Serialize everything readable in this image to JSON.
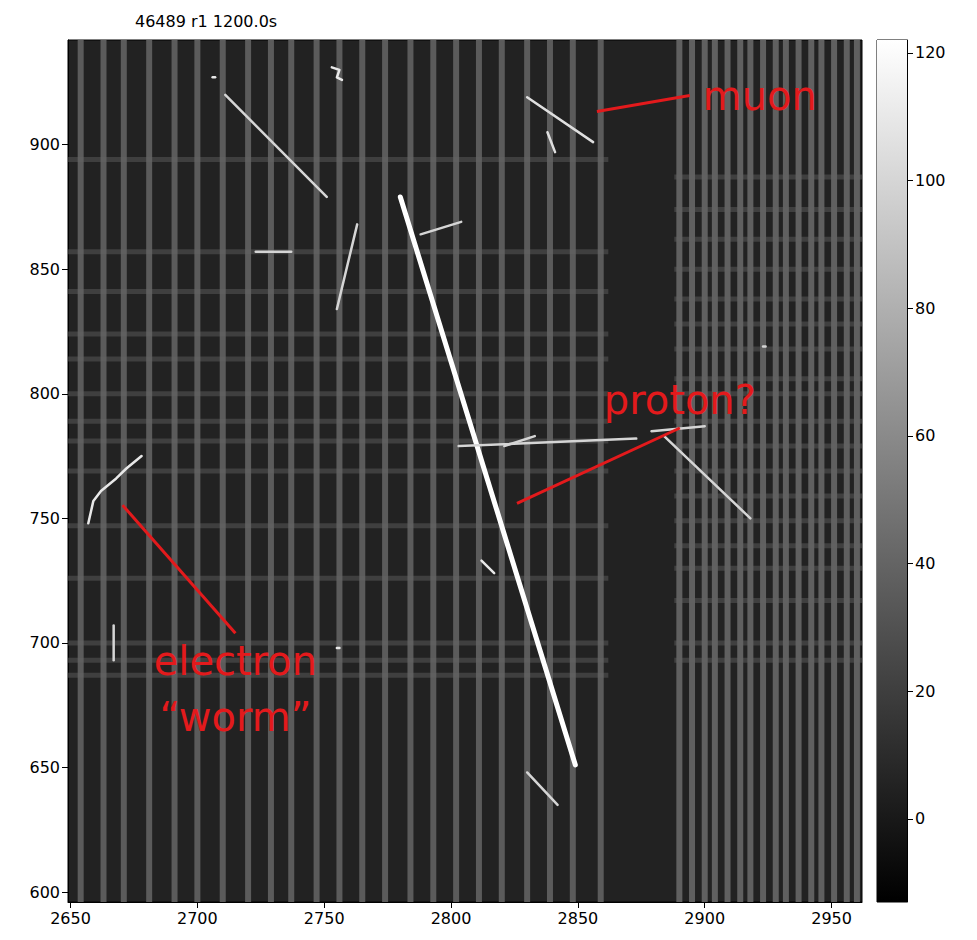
{
  "chart_data": {
    "type": "image",
    "title": "46489 r1 1200.0s",
    "xlim": [
      2649,
      2962
    ],
    "ylim": [
      596,
      942
    ],
    "xticks": [
      2650,
      2700,
      2750,
      2800,
      2850,
      2900,
      2950
    ],
    "yticks": [
      600,
      650,
      700,
      750,
      800,
      850,
      900
    ],
    "colorbar": {
      "range": [
        -13,
        122
      ],
      "ticks": [
        0,
        20,
        40,
        60,
        80,
        100,
        120
      ]
    },
    "background": 5,
    "stripes": [
      {
        "x": [
          2654,
          2663,
          2671,
          2681,
          2691,
          2700,
          2710,
          2720,
          2729,
          2737,
          2747,
          2756,
          2765,
          2774,
          2784,
          2793,
          2802,
          2811,
          2820,
          2830,
          2839,
          2848,
          2859
        ],
        "value": 35
      },
      {
        "x": [
          2890,
          2895,
          2900,
          2904,
          2909,
          2914,
          2918,
          2923,
          2928,
          2932,
          2937,
          2942,
          2946,
          2951,
          2956,
          2960
        ],
        "value": 38
      }
    ],
    "rows": [
      {
        "y": [
          894,
          857,
          841,
          824,
          814,
          800,
          789,
          781,
          769,
          747,
          726,
          700,
          693,
          687
        ],
        "x_range": [
          2649,
          2862
        ],
        "value": 40
      },
      {
        "y": [
          887,
          874,
          862,
          850,
          838,
          828,
          818,
          806,
          800,
          789,
          779,
          769,
          759,
          749,
          739,
          730,
          717,
          700,
          693
        ],
        "x_range": [
          2888,
          2962
        ],
        "value": 40
      }
    ],
    "tracks": [
      {
        "points": [
          [
            2780,
            879
          ],
          [
            2849,
            651
          ]
        ],
        "value": 122
      },
      {
        "points": [
          [
            2830,
            919
          ],
          [
            2856,
            901
          ]
        ],
        "value": 105
      },
      {
        "points": [
          [
            2838,
            905
          ],
          [
            2841,
            897
          ]
        ],
        "value": 105
      },
      {
        "points": [
          [
            2711,
            920
          ],
          [
            2751,
            879
          ]
        ],
        "value": 100
      },
      {
        "points": [
          [
            2723,
            857
          ],
          [
            2737,
            857
          ]
        ],
        "value": 100
      },
      {
        "points": [
          [
            2755,
            834
          ],
          [
            2763,
            868
          ]
        ],
        "value": 100
      },
      {
        "points": [
          [
            2788,
            864
          ],
          [
            2804,
            869
          ]
        ],
        "value": 100
      },
      {
        "points": [
          [
            2803,
            779
          ],
          [
            2873,
            782
          ]
        ],
        "value": 100
      },
      {
        "points": [
          [
            2879,
            785
          ],
          [
            2900,
            787
          ]
        ],
        "value": 100
      },
      {
        "points": [
          [
            2821,
            779
          ],
          [
            2833,
            783
          ]
        ],
        "value": 100
      },
      {
        "points": [
          [
            2884,
            783
          ],
          [
            2918,
            750
          ]
        ],
        "value": 100
      },
      {
        "points": [
          [
            2657,
            748
          ],
          [
            2659,
            757
          ],
          [
            2662,
            761
          ],
          [
            2668,
            766
          ],
          [
            2672,
            770
          ],
          [
            2678,
            775
          ]
        ],
        "value": 110
      },
      {
        "points": [
          [
            2667,
            707
          ],
          [
            2667,
            693
          ]
        ],
        "value": 100
      },
      {
        "points": [
          [
            2830,
            648
          ],
          [
            2842,
            635
          ]
        ],
        "value": 100
      },
      {
        "points": [
          [
            2753,
            931
          ],
          [
            2756,
            930
          ],
          [
            2755,
            927
          ],
          [
            2757,
            926
          ]
        ],
        "value": 110
      },
      {
        "points": [
          [
            2812,
            733
          ],
          [
            2815,
            730
          ],
          [
            2817,
            728
          ]
        ],
        "value": 110
      },
      {
        "points": [
          [
            2755,
            698
          ],
          [
            2756,
            698
          ]
        ],
        "value": 110
      },
      {
        "points": [
          [
            2706,
            927
          ],
          [
            2707,
            927
          ]
        ],
        "value": 110
      },
      {
        "points": [
          [
            2923,
            819
          ],
          [
            2924,
            819
          ]
        ],
        "value": 100
      }
    ],
    "annotations": [
      {
        "text": "muon",
        "x": 2921.7,
        "y": 919.7,
        "target": [
          2857.5,
          913.3
        ],
        "color": "#e31a1c"
      },
      {
        "text": "proton?",
        "x": 2890.2,
        "y": 797.5,
        "target": [
          2826,
          756
        ],
        "color": "#e31a1c"
      },
      {
        "text": "electron\n“worm”",
        "x": 2715,
        "y": 681.4,
        "target": [
          2670.5,
          755.3
        ],
        "color": "#e31a1c"
      }
    ]
  }
}
